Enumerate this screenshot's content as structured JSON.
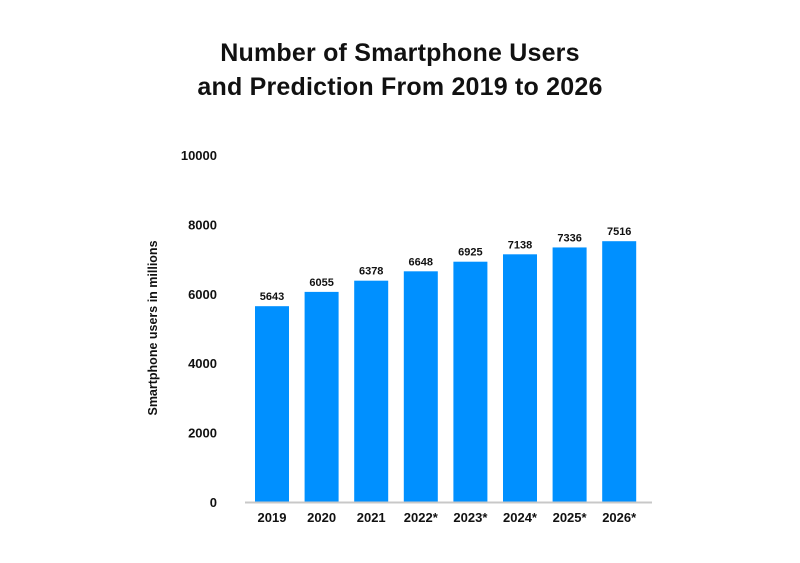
{
  "chart_data": {
    "type": "bar",
    "title_lines": [
      "Number of Smartphone Users",
      "and Prediction From 2019 to 2026"
    ],
    "title": "Number of Smartphone Users and Prediction From 2019 to 2026",
    "xlabel": "",
    "ylabel": "Smartphone users in millions",
    "categories": [
      "2019",
      "2020",
      "2021",
      "2022*",
      "2023*",
      "2024*",
      "2025*",
      "2026*"
    ],
    "values": [
      5643,
      6055,
      6378,
      6648,
      6925,
      7138,
      7336,
      7516
    ],
    "data_labels": [
      "5643",
      "6055",
      "6378",
      "6648",
      "6925",
      "7138",
      "7336",
      "7516"
    ],
    "ylim": [
      0,
      10000
    ],
    "yticks": [
      0,
      2000,
      4000,
      6000,
      8000,
      10000
    ],
    "grid": false,
    "legend": "none",
    "colors": {
      "bar": "#0090ff",
      "axis": "#c8c8c8",
      "text": "#111111"
    }
  }
}
